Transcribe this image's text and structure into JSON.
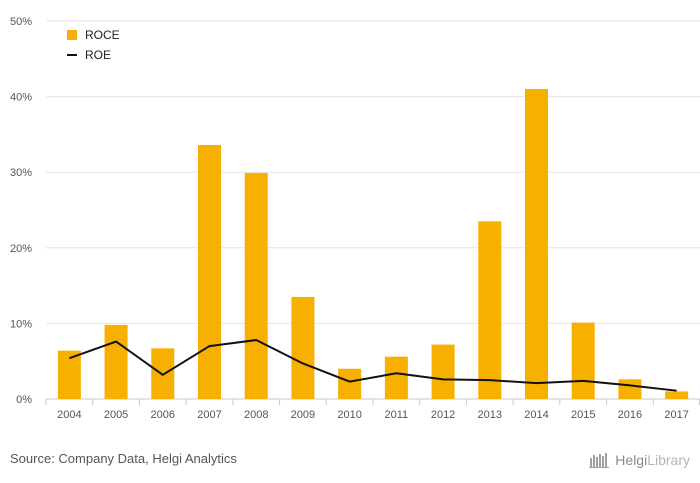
{
  "chart_data": {
    "type": "bar",
    "categories": [
      "2004",
      "2005",
      "2006",
      "2007",
      "2008",
      "2009",
      "2010",
      "2011",
      "2012",
      "2013",
      "2014",
      "2015",
      "2016",
      "2017"
    ],
    "series": [
      {
        "name": "ROCE",
        "type": "bar",
        "color": "#F7B000",
        "values": [
          6.4,
          9.8,
          6.7,
          33.6,
          29.9,
          13.5,
          4.0,
          5.6,
          7.2,
          23.5,
          41.0,
          10.1,
          2.6,
          1.0
        ]
      },
      {
        "name": "ROE",
        "type": "line",
        "color": "#111111",
        "values": [
          5.4,
          7.6,
          3.2,
          7.0,
          7.8,
          4.7,
          2.3,
          3.4,
          2.6,
          2.5,
          2.1,
          2.4,
          1.8,
          1.1
        ]
      }
    ],
    "ylim": [
      0,
      50
    ],
    "yticks": [
      0,
      10,
      20,
      30,
      40,
      50
    ],
    "ytick_labels": [
      "0%",
      "10%",
      "20%",
      "30%",
      "40%",
      "50%"
    ],
    "grid": true,
    "legend_position": "top-left"
  },
  "footer": {
    "source": "Source: Company Data, Helgi Analytics",
    "brand_part1": "Helgi",
    "brand_part2": "Library"
  },
  "logo_icon": "library-books-icon"
}
